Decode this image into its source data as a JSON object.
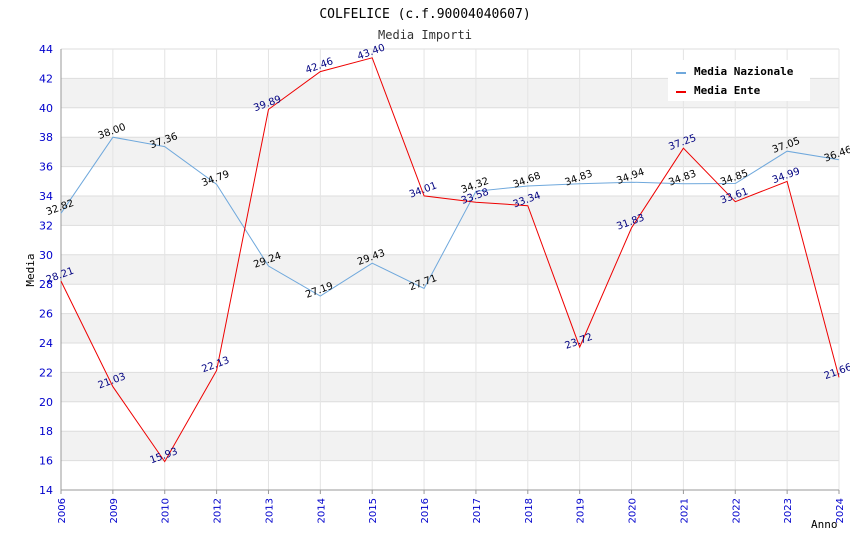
{
  "chart_data": {
    "type": "line",
    "title": "COLFELICE (c.f.90004040607)",
    "subtitle": "Media Importi",
    "xlabel": "Anno",
    "ylabel": "Media",
    "ylim": [
      14,
      44
    ],
    "yticks": [
      14,
      16,
      18,
      20,
      22,
      24,
      26,
      28,
      30,
      32,
      34,
      36,
      38,
      40,
      42,
      44
    ],
    "categories": [
      "2006",
      "2009",
      "2010",
      "2012",
      "2013",
      "2014",
      "2015",
      "2016",
      "2017",
      "2018",
      "2019",
      "2020",
      "2021",
      "2022",
      "2023",
      "2024"
    ],
    "series": [
      {
        "name": "Media Nazionale",
        "color": "#6fa8dc",
        "values": [
          32.82,
          38.0,
          37.36,
          34.79,
          29.24,
          27.19,
          29.43,
          27.71,
          34.32,
          34.68,
          34.83,
          34.94,
          34.83,
          34.85,
          37.05,
          36.46
        ],
        "labels": [
          "32.82",
          "38.00",
          "37.36",
          "34.79",
          "29.24",
          "27.19",
          "29.43",
          "27.71",
          "34.32",
          "34.68",
          "34.83",
          "34.94",
          "34.83",
          "34.85",
          "37.05",
          "36.46"
        ]
      },
      {
        "name": "Media Ente",
        "color": "#ee0000",
        "values": [
          28.21,
          21.03,
          15.93,
          22.13,
          39.89,
          42.46,
          43.4,
          34.01,
          33.58,
          33.34,
          23.72,
          31.83,
          37.25,
          33.61,
          34.99,
          21.66
        ],
        "labels": [
          "28.21",
          "21.03",
          "15.93",
          "22.13",
          "39.89",
          "42.46",
          "43.40",
          "34.01",
          "33.58",
          "33.34",
          "23.72",
          "31.83",
          "37.25",
          "33.61",
          "34.99",
          "21.66"
        ]
      }
    ],
    "grid": true,
    "legend": "top-right"
  }
}
